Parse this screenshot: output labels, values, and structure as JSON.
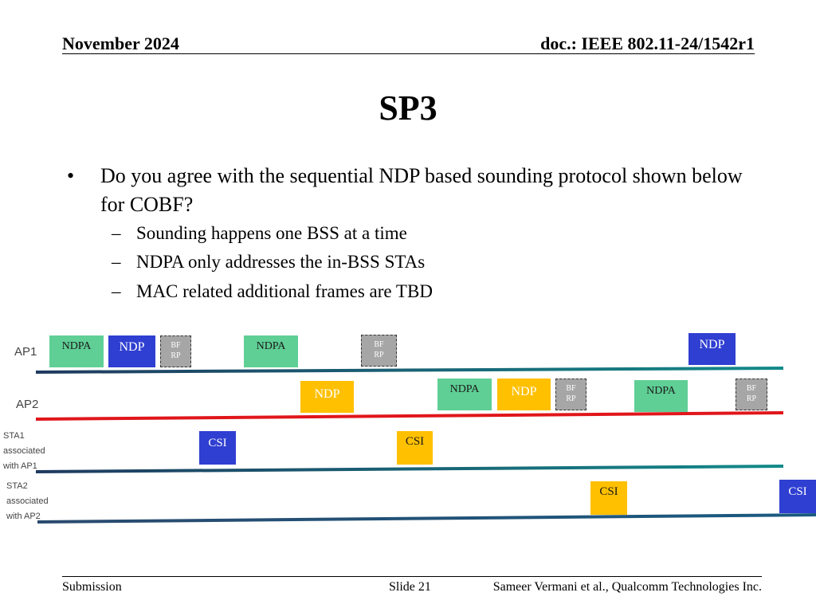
{
  "header": {
    "date": "November 2024",
    "doc": "doc.: IEEE 802.11-24/1542r1"
  },
  "title": "SP3",
  "question": {
    "bullet": "•",
    "text": "Do you agree with the sequential NDP based sounding protocol shown below for COBF?",
    "subs": [
      "Sounding happens one BSS at a time",
      "NDPA only addresses the in-BSS STAs",
      "MAC related additional frames are TBD"
    ],
    "dash": "–"
  },
  "diagram": {
    "lanes": {
      "ap1": "AP1",
      "ap2": "AP2",
      "sta1": [
        "STA1",
        "associated",
        "with AP1"
      ],
      "sta2": [
        "STA2",
        "associated",
        "with AP2"
      ]
    },
    "frames": {
      "ndpa": "NDPA",
      "ndp": "NDP",
      "bf": "BF",
      "rp": "RP",
      "csi": "CSI"
    },
    "colors": {
      "ndpa": "#5fcf95",
      "ndp_ap1": "#2f3fd1",
      "ndp_ap2": "#ffc000",
      "bfrp": "#a6a6a6",
      "line_teal": "#1a7a7a",
      "line_red": "#e0161b",
      "line_navy": "#1f3a5f"
    }
  },
  "footer": {
    "left": "Submission",
    "slide": "Slide 21",
    "author": "Sameer Vermani et al., Qualcomm Technologies Inc."
  }
}
